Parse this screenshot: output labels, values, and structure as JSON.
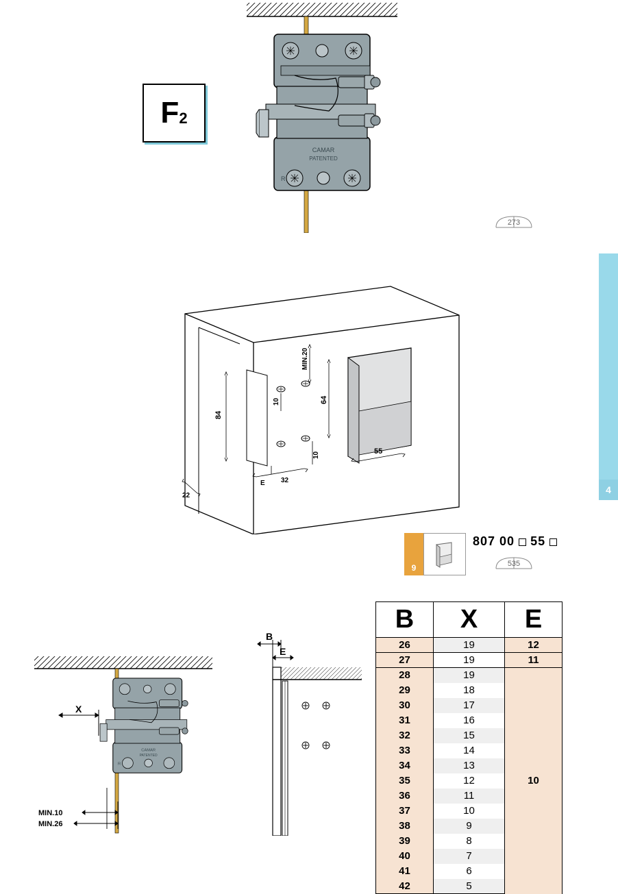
{
  "side_tab_number": "4",
  "figure_label": {
    "letter": "F",
    "sub": "2"
  },
  "page_ref_top": "273",
  "product_ref": {
    "tab": "9",
    "code_prefix": "807 00",
    "code_mid": "55",
    "book_page": "535"
  },
  "hardware": {
    "brand": "CAMAR",
    "patent": "PATENTED",
    "side_mark": "R"
  },
  "mid_diagram_dims": {
    "h84": "84",
    "v10a": "10",
    "v10b": "10",
    "min20": "MIN.20",
    "h64": "64",
    "h55": "55",
    "w32": "32",
    "wE": "E",
    "a22": "22"
  },
  "left_diagram_dims": {
    "x": "X",
    "min10": "MIN.10",
    "min26": "MIN.26"
  },
  "right_diagram_dims": {
    "b": "B",
    "e": "E"
  },
  "table": {
    "headers": [
      "B",
      "X",
      "E"
    ],
    "colors": {
      "b_bg": "#f7e3d2",
      "x_bg": "#efefef",
      "e_bg": "#f7e3d2",
      "x_alt": "#ffffff"
    },
    "rows": [
      {
        "b": "26",
        "x": "19"
      },
      {
        "b": "27",
        "x": "19"
      },
      {
        "b": "28",
        "x": "19"
      },
      {
        "b": "29",
        "x": "18"
      },
      {
        "b": "30",
        "x": "17"
      },
      {
        "b": "31",
        "x": "16"
      },
      {
        "b": "32",
        "x": "15"
      },
      {
        "b": "33",
        "x": "14"
      },
      {
        "b": "34",
        "x": "13"
      },
      {
        "b": "35",
        "x": "12"
      },
      {
        "b": "36",
        "x": "11"
      },
      {
        "b": "37",
        "x": "10"
      },
      {
        "b": "38",
        "x": "9"
      },
      {
        "b": "39",
        "x": "8"
      },
      {
        "b": "40",
        "x": "7"
      },
      {
        "b": "41",
        "x": "6"
      },
      {
        "b": "42",
        "x": "5"
      }
    ],
    "e_groups": [
      {
        "value": "12",
        "rowspan": 1
      },
      {
        "value": "11",
        "rowspan": 1
      },
      {
        "value": "10",
        "rowspan": 15
      }
    ]
  }
}
